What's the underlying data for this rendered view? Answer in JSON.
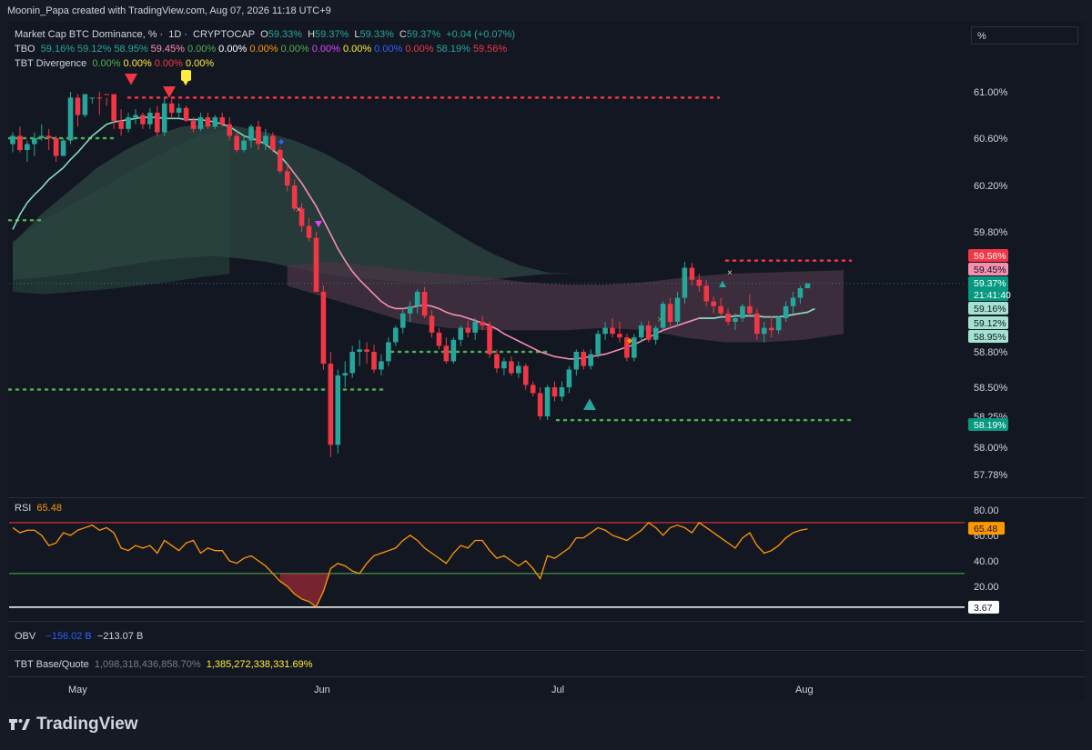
{
  "attribution": "Moonin_Papa created with TradingView.com, Aug 07, 2026 11:18 UTC+9",
  "scale_unit": "%",
  "legend": {
    "main": {
      "symbol": "Market Cap BTC Dominance, %",
      "interval": "1D",
      "exchange": "CRYPTOCAP",
      "o_label": "O",
      "o_value": "59.33%",
      "h_label": "H",
      "h_value": "59.37%",
      "l_label": "L",
      "l_value": "59.33%",
      "c_label": "C",
      "c_value": "59.37%",
      "change": "+0.04 (+0.07%)"
    },
    "tbo": {
      "name": "TBO",
      "values": [
        "59.16%",
        "59.12%",
        "58.95%",
        "59.45%",
        "0.00%",
        "0.00%",
        "0.00%",
        "0.00%",
        "0.00%",
        "0.00%",
        "0.00%",
        "0.00%",
        "58.19%",
        "59.56%"
      ],
      "colors": [
        "#26a69a",
        "#26a69a",
        "#26a69a",
        "#f48fb1",
        "#4caf50",
        "#ffffff",
        "#ff9800",
        "#4caf50",
        "#e040fb",
        "#ffeb3b",
        "#2962ff",
        "#f23645",
        "#26a69a",
        "#f23645"
      ]
    },
    "div": {
      "name": "TBT Divergence",
      "values": [
        "0.00%",
        "0.00%",
        "0.00%",
        "0.00%"
      ],
      "colors": [
        "#4caf50",
        "#ffeb3b",
        "#f23645",
        "#ffeb3b"
      ]
    }
  },
  "price_badges": [
    {
      "text": "59.56%",
      "bg": "#f23645",
      "fg": "#ffffff",
      "value": 59.56
    },
    {
      "text": "59.45%",
      "bg": "#f48fb1",
      "fg": "#131722",
      "value": 59.45
    },
    {
      "text": "59.37%",
      "bg": "#089981",
      "fg": "#ffffff",
      "value": 59.37,
      "sub": "21:41:40"
    },
    {
      "text": "59.16%",
      "bg": "#a5e3d1",
      "fg": "#131722",
      "value": 59.16
    },
    {
      "text": "59.12%",
      "bg": "#a5e3d1",
      "fg": "#131722",
      "value": 59.12
    },
    {
      "text": "58.95%",
      "bg": "#a5e3d1",
      "fg": "#131722",
      "value": 58.95
    },
    {
      "text": "58.19%",
      "bg": "#089981",
      "fg": "#ffffff",
      "value": 58.19
    }
  ],
  "rsi": {
    "name": "RSI",
    "value": "65.48",
    "badge": "65.48",
    "low_badge": "3.67"
  },
  "obv": {
    "name": "OBV",
    "v1": "−156.02 B",
    "v2": "−213.07 B"
  },
  "tbt": {
    "name": "TBT Base/Quote",
    "v1": "1,098,318,436,858.70%",
    "v2": "1,385,272,338,331.69%"
  },
  "brand": "TradingView",
  "chart_data": {
    "type": "candlestick",
    "y_axis": {
      "ticks": [
        "61.00%",
        "60.60%",
        "60.20%",
        "59.80%",
        "58.80%",
        "58.50%",
        "58.25%",
        "58.00%",
        "57.78%"
      ],
      "tick_values": [
        61.0,
        60.6,
        60.2,
        59.8,
        58.8,
        58.5,
        58.25,
        58.0,
        57.78
      ],
      "range": [
        57.7,
        61.3
      ]
    },
    "x_axis": {
      "labels": [
        "May",
        "Jun",
        "Jul",
        "Aug"
      ],
      "label_dates": [
        "May",
        "Jun",
        "Jul",
        "Aug"
      ]
    },
    "candles": [
      [
        60.55,
        60.65,
        60.48,
        60.62
      ],
      [
        60.62,
        60.7,
        60.48,
        60.5
      ],
      [
        60.5,
        60.58,
        60.4,
        60.55
      ],
      [
        60.55,
        60.65,
        60.45,
        60.6
      ],
      [
        60.6,
        60.72,
        60.58,
        60.62
      ],
      [
        60.62,
        60.68,
        60.5,
        60.6
      ],
      [
        60.6,
        60.62,
        60.4,
        60.45
      ],
      [
        60.45,
        60.6,
        60.45,
        60.58
      ],
      [
        60.58,
        61.0,
        60.55,
        60.95
      ],
      [
        60.95,
        61.02,
        60.7,
        60.8
      ],
      [
        60.8,
        61.05,
        60.78,
        60.98
      ],
      [
        60.98,
        61.1,
        60.95,
        61.05
      ],
      [
        61.05,
        61.2,
        61.0,
        61.02
      ],
      [
        61.02,
        61.12,
        60.95,
        60.98
      ],
      [
        60.98,
        61.02,
        60.68,
        60.75
      ],
      [
        60.75,
        60.85,
        60.62,
        60.68
      ],
      [
        60.68,
        60.82,
        60.65,
        60.78
      ],
      [
        60.78,
        60.85,
        60.72,
        60.8
      ],
      [
        60.8,
        60.82,
        60.68,
        60.72
      ],
      [
        60.72,
        60.86,
        60.68,
        60.82
      ],
      [
        60.82,
        60.88,
        60.62,
        60.65
      ],
      [
        60.65,
        60.95,
        60.62,
        60.9
      ],
      [
        60.9,
        60.94,
        60.78,
        60.82
      ],
      [
        60.82,
        60.9,
        60.78,
        60.86
      ],
      [
        60.86,
        60.88,
        60.74,
        60.75
      ],
      [
        60.75,
        60.78,
        60.65,
        60.68
      ],
      [
        60.68,
        60.82,
        60.66,
        60.78
      ],
      [
        60.78,
        60.82,
        60.68,
        60.7
      ],
      [
        60.7,
        60.8,
        60.68,
        60.78
      ],
      [
        60.78,
        60.82,
        60.7,
        60.72
      ],
      [
        60.72,
        60.78,
        60.58,
        60.62
      ],
      [
        60.62,
        60.66,
        60.48,
        60.5
      ],
      [
        60.5,
        60.62,
        60.48,
        60.58
      ],
      [
        60.58,
        60.72,
        60.52,
        60.7
      ],
      [
        60.7,
        60.75,
        60.5,
        60.55
      ],
      [
        60.55,
        60.68,
        60.5,
        60.62
      ],
      [
        60.62,
        60.65,
        60.48,
        60.5
      ],
      [
        60.5,
        60.52,
        60.3,
        60.32
      ],
      [
        60.32,
        60.38,
        60.15,
        60.2
      ],
      [
        60.2,
        60.25,
        59.98,
        60.0
      ],
      [
        60.0,
        60.05,
        59.8,
        59.85
      ],
      [
        59.85,
        59.92,
        59.72,
        59.75
      ],
      [
        59.75,
        59.8,
        59.3,
        59.3
      ],
      [
        59.3,
        59.35,
        58.65,
        58.7
      ],
      [
        58.7,
        58.8,
        57.92,
        58.02
      ],
      [
        58.02,
        58.65,
        57.95,
        58.6
      ],
      [
        58.6,
        58.72,
        58.5,
        58.62
      ],
      [
        58.62,
        58.85,
        58.58,
        58.8
      ],
      [
        58.8,
        58.9,
        58.68,
        58.82
      ],
      [
        58.82,
        58.88,
        58.7,
        58.8
      ],
      [
        58.8,
        58.86,
        58.62,
        58.65
      ],
      [
        58.65,
        58.78,
        58.6,
        58.72
      ],
      [
        58.72,
        58.92,
        58.68,
        58.88
      ],
      [
        58.88,
        59.02,
        58.85,
        59.0
      ],
      [
        59.0,
        59.15,
        58.95,
        59.12
      ],
      [
        59.12,
        59.22,
        59.05,
        59.18
      ],
      [
        59.18,
        59.32,
        59.12,
        59.3
      ],
      [
        59.3,
        59.34,
        59.08,
        59.1
      ],
      [
        59.1,
        59.15,
        58.92,
        58.96
      ],
      [
        58.96,
        59.0,
        58.82,
        58.85
      ],
      [
        58.85,
        58.92,
        58.7,
        58.72
      ],
      [
        58.72,
        58.92,
        58.7,
        58.9
      ],
      [
        58.9,
        59.02,
        58.85,
        59.0
      ],
      [
        59.0,
        59.06,
        58.92,
        58.96
      ],
      [
        58.96,
        59.08,
        58.9,
        59.05
      ],
      [
        59.05,
        59.1,
        58.98,
        59.02
      ],
      [
        59.02,
        59.05,
        58.75,
        58.78
      ],
      [
        58.78,
        58.82,
        58.62,
        58.66
      ],
      [
        58.66,
        58.75,
        58.6,
        58.72
      ],
      [
        58.72,
        58.76,
        58.6,
        58.62
      ],
      [
        58.62,
        58.72,
        58.58,
        58.68
      ],
      [
        58.68,
        58.7,
        58.48,
        58.52
      ],
      [
        58.52,
        58.55,
        58.42,
        58.45
      ],
      [
        58.45,
        58.5,
        58.22,
        58.25
      ],
      [
        58.25,
        58.52,
        58.22,
        58.5
      ],
      [
        58.5,
        58.55,
        58.38,
        58.42
      ],
      [
        58.42,
        58.55,
        58.38,
        58.5
      ],
      [
        58.5,
        58.68,
        58.45,
        58.65
      ],
      [
        58.65,
        58.82,
        58.6,
        58.8
      ],
      [
        58.8,
        58.82,
        58.65,
        58.68
      ],
      [
        58.68,
        58.82,
        58.65,
        58.78
      ],
      [
        58.78,
        58.98,
        58.75,
        58.95
      ],
      [
        58.95,
        59.05,
        58.9,
        59.0
      ],
      [
        59.0,
        59.08,
        58.92,
        58.95
      ],
      [
        58.95,
        59.05,
        58.88,
        58.92
      ],
      [
        58.92,
        58.95,
        58.72,
        58.75
      ],
      [
        58.75,
        58.95,
        58.72,
        58.92
      ],
      [
        58.92,
        59.05,
        58.88,
        59.02
      ],
      [
        59.02,
        59.06,
        58.88,
        58.9
      ],
      [
        58.9,
        59.02,
        58.86,
        59.0
      ],
      [
        59.0,
        59.22,
        58.98,
        59.2
      ],
      [
        59.2,
        59.25,
        59.0,
        59.05
      ],
      [
        59.05,
        59.3,
        59.02,
        59.25
      ],
      [
        59.25,
        59.55,
        59.2,
        59.5
      ],
      [
        59.5,
        59.54,
        59.35,
        59.4
      ],
      [
        59.4,
        59.45,
        59.3,
        59.35
      ],
      [
        59.35,
        59.4,
        59.18,
        59.22
      ],
      [
        59.22,
        59.26,
        59.12,
        59.18
      ],
      [
        59.18,
        59.25,
        59.1,
        59.12
      ],
      [
        59.12,
        59.16,
        59.02,
        59.05
      ],
      [
        59.05,
        59.12,
        58.98,
        59.08
      ],
      [
        59.08,
        59.2,
        59.05,
        59.18
      ],
      [
        59.18,
        59.28,
        59.1,
        59.12
      ],
      [
        59.12,
        59.16,
        58.9,
        58.95
      ],
      [
        58.95,
        59.05,
        58.88,
        59.0
      ],
      [
        59.0,
        59.1,
        58.92,
        58.98
      ],
      [
        58.98,
        59.1,
        58.95,
        59.08
      ],
      [
        59.08,
        59.22,
        59.05,
        59.18
      ],
      [
        59.18,
        59.3,
        59.12,
        59.25
      ],
      [
        59.25,
        59.35,
        59.2,
        59.33
      ],
      [
        59.33,
        59.37,
        59.33,
        59.37
      ]
    ],
    "tbo_fast_line": [
      59.82,
      59.95,
      60.05,
      60.12,
      60.18,
      60.25,
      60.3,
      60.35,
      60.42,
      60.48,
      60.55,
      60.62,
      60.67,
      60.72,
      60.74,
      60.75,
      60.76,
      60.77,
      60.78,
      60.78,
      60.78,
      60.77,
      60.77,
      60.77,
      60.76,
      60.76,
      60.76,
      60.75,
      60.74,
      60.72,
      60.7,
      60.66,
      60.62,
      60.6,
      60.58,
      60.55,
      60.5,
      60.45,
      60.38,
      60.3,
      60.22,
      60.12,
      60.02,
      59.9,
      59.78,
      59.66,
      59.56,
      59.47,
      59.4,
      59.34,
      59.28,
      59.22,
      59.18,
      59.16,
      59.16,
      59.17,
      59.18,
      59.19,
      59.18,
      59.16,
      59.13,
      59.11,
      59.1,
      59.08,
      59.06,
      59.04,
      59.02,
      58.99,
      58.95,
      58.92,
      58.89,
      58.86,
      58.83,
      58.8,
      58.78,
      58.76,
      58.75,
      58.74,
      58.74,
      58.75,
      58.76,
      58.77,
      58.78,
      58.8,
      58.82,
      58.84,
      58.86,
      58.89,
      58.92,
      58.95,
      58.98,
      59.0,
      59.02,
      59.04,
      59.06,
      59.08,
      59.08,
      59.08,
      59.09,
      59.09,
      59.1,
      59.1,
      59.1,
      59.1,
      59.09,
      59.09,
      59.09,
      59.1,
      59.11,
      59.12,
      59.13,
      59.16
    ],
    "rsi": {
      "range": [
        0,
        100
      ],
      "upper": 70,
      "lower": 30,
      "ticks": [
        "80.00",
        "60.00",
        "40.00",
        "20.00"
      ],
      "tick_values": [
        80,
        60,
        40,
        20
      ],
      "values": [
        66,
        62,
        64,
        64,
        60,
        52,
        54,
        62,
        60,
        64,
        66,
        68,
        64,
        66,
        62,
        50,
        48,
        52,
        50,
        52,
        46,
        56,
        52,
        48,
        54,
        56,
        46,
        50,
        48,
        48,
        40,
        38,
        42,
        44,
        40,
        36,
        30,
        24,
        20,
        14,
        10,
        8,
        4,
        16,
        34,
        38,
        36,
        32,
        30,
        38,
        44,
        46,
        48,
        50,
        56,
        60,
        56,
        50,
        46,
        42,
        38,
        46,
        52,
        50,
        56,
        56,
        48,
        42,
        44,
        40,
        36,
        40,
        34,
        26,
        44,
        42,
        46,
        50,
        58,
        58,
        62,
        66,
        64,
        60,
        58,
        56,
        60,
        64,
        70,
        66,
        60,
        66,
        68,
        66,
        62,
        70,
        66,
        62,
        58,
        54,
        50,
        58,
        62,
        52,
        46,
        48,
        52,
        58,
        62,
        64,
        65
      ]
    }
  }
}
